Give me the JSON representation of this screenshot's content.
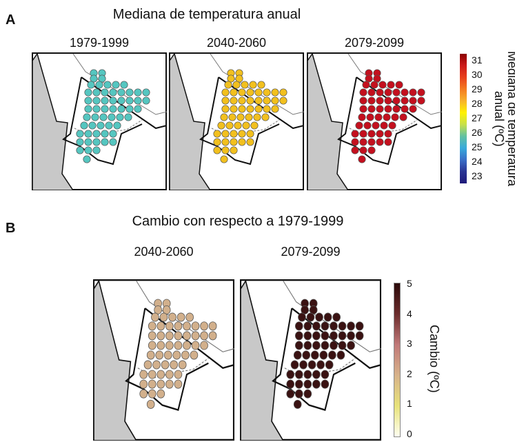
{
  "panels": {
    "a": {
      "letter": "A",
      "title": "Mediana de temperatura anual",
      "maps": [
        {
          "period": "1979-1999"
        },
        {
          "period": "2040-2060"
        },
        {
          "period": "2079-2099"
        }
      ],
      "colorbar": {
        "label_line1": "Mediana de temperatura",
        "label_line2": "anual (ºC)",
        "ticks": [
          "31",
          "30",
          "29",
          "28",
          "27",
          "26",
          "25",
          "24",
          "23"
        ],
        "colors": [
          "#8b0000",
          "#cc1a1a",
          "#e8401c",
          "#f47b20",
          "#f7b32b",
          "#fff200",
          "#c7e04a",
          "#62c1a2",
          "#38aadb",
          "#3a6ec7",
          "#2a3494",
          "#1f1a7a"
        ]
      },
      "map_fill": [
        "#55c6c0",
        "#f2c01e",
        "#c4101e"
      ]
    },
    "b": {
      "letter": "B",
      "title": "Cambio con respecto a 1979-1999",
      "maps": [
        {
          "period": "2040-2060"
        },
        {
          "period": "2079-2099"
        }
      ],
      "colorbar": {
        "label": "Cambio (ºC)",
        "ticks": [
          "5",
          "4",
          "3",
          "2",
          "1",
          "0"
        ],
        "colors": [
          "#2b0a0a",
          "#6b2c2c",
          "#c07878",
          "#d7b28a",
          "#e7e27a",
          "#fffff0"
        ]
      },
      "map_fill": [
        "#d2b08c",
        "#3a1212"
      ]
    }
  }
}
